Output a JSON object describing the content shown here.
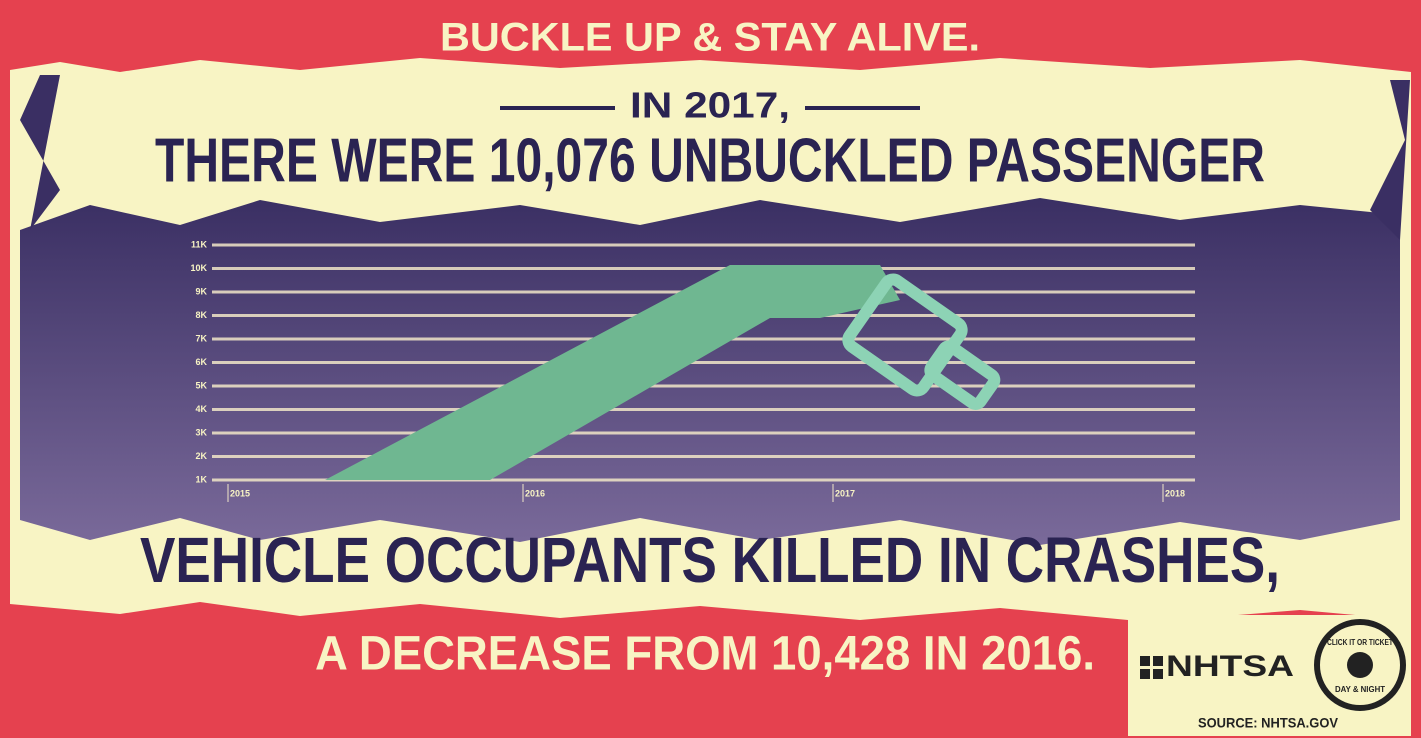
{
  "header": {
    "title": "BUCKLE UP & STAY ALIVE."
  },
  "headline": {
    "line1": "IN 2017,",
    "line2": "THERE WERE 10,076 UNBUCKLED PASSENGER",
    "line3": "VEHICLE OCCUPANTS KILLED IN CRASHES,"
  },
  "chart": {
    "y_labels": [
      "11K",
      "10K",
      "9K",
      "8K",
      "7K",
      "6K",
      "5K",
      "4K",
      "3K",
      "2K",
      "1K"
    ],
    "x_labels": [
      "2015",
      "2016",
      "2017",
      "2018"
    ]
  },
  "footer": {
    "text": "A DECREASE FROM 10,428 IN 2016.",
    "logo": "NHTSA",
    "badge_top": "CLICK IT OR TICKET",
    "badge_bottom": "DAY & NIGHT",
    "source": "SOURCE: NHTSA.GOV"
  }
}
